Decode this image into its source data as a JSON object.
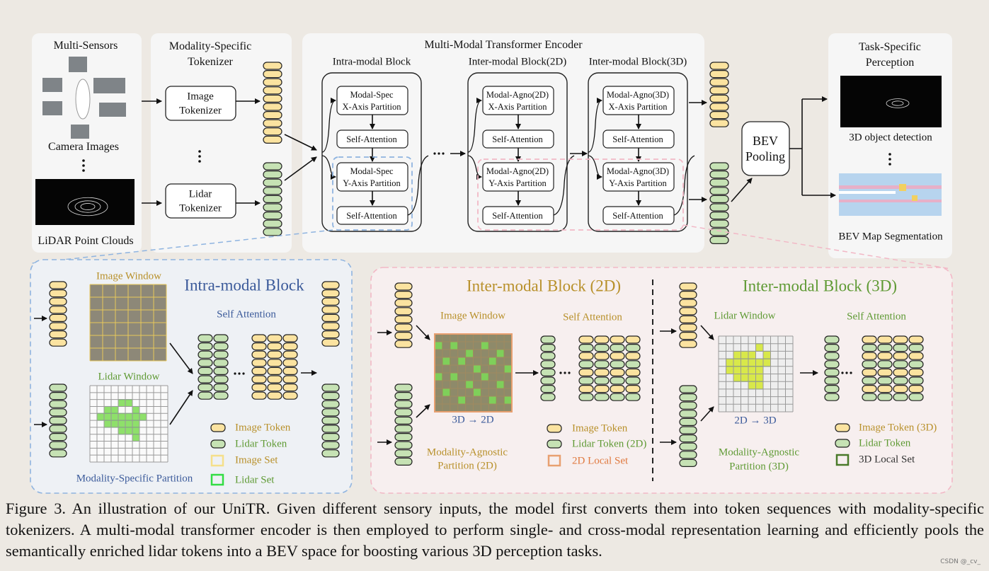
{
  "sensors": {
    "title": "Multi-Sensors",
    "camera": "Camera Images",
    "lidar": "LiDAR Point Clouds"
  },
  "tokenizer": {
    "title": [
      "Modality-Specific",
      "Tokenizer"
    ],
    "image": [
      "Image",
      "Tokenizer"
    ],
    "lidar": [
      "Lidar",
      "Tokenizer"
    ]
  },
  "encoder": {
    "title": "Multi-Modal Transformer Encoder",
    "blocks": [
      {
        "title": "Intra-modal Block",
        "x_partition": [
          "Modal-Spec",
          "X-Axis Partition"
        ],
        "attention_1": "Self-Attention",
        "y_partition": [
          "Modal-Spec",
          "Y-Axis Partition"
        ],
        "attention_2": "Self-Attention"
      },
      {
        "title": "Inter-modal Block(2D)",
        "x_partition": [
          "Modal-Agno(2D)",
          "X-Axis Partition"
        ],
        "attention_1": "Self-Attention",
        "y_partition": [
          "Modal-Agno(2D)",
          "Y-Axis Partition"
        ],
        "attention_2": "Self-Attention"
      },
      {
        "title": "Inter-modal Block(3D)",
        "x_partition": [
          "Modal-Agno(3D)",
          "X-Axis Partition"
        ],
        "attention_1": "Self-Attention",
        "y_partition": [
          "Modal-Agno(3D)",
          "Y-Axis Partition"
        ],
        "attention_2": "Self-Attention"
      }
    ]
  },
  "pooling": [
    "BEV",
    "Pooling"
  ],
  "perception": {
    "title": [
      "Task-Specific",
      "Perception"
    ],
    "detection": "3D object detection",
    "segmentation": "BEV Map Segmentation"
  },
  "intra_detail": {
    "title": "Intra-modal Block",
    "image_window": "Image Window",
    "lidar_window": "Lidar Window",
    "attention": "Self Attention",
    "legend": [
      "Image Token",
      "Lidar Token",
      "Image Set",
      "Lidar Set"
    ],
    "partition": "Modality-Specific Partition"
  },
  "inter2d_detail": {
    "title": "Inter-modal Block (2D)",
    "window": "Image Window",
    "projection": "3D → 2D",
    "attention": "Self Attention",
    "legend": [
      "Image Token",
      "Lidar Token (2D)",
      "2D Local Set"
    ],
    "partition": [
      "Modality-Agnostic",
      "Partition (2D)"
    ]
  },
  "inter3d_detail": {
    "title": "Inter-modal Block (3D)",
    "window": "Lidar Window",
    "projection": "2D → 3D",
    "attention": "Self Attention",
    "legend": [
      "Image Token (3D)",
      "Lidar Token",
      "3D Local Set"
    ],
    "partition": [
      "Modality-Agnostic",
      "Partition (3D)"
    ]
  },
  "caption": "Figure 3. An illustration of our UniTR. Given different sensory inputs, the model first converts them into token sequences with modality-specific tokenizers. A multi-modal transformer encoder is then employed to perform single- and cross-modal representation learning and efficiently pools the semantically enriched lidar tokens into a BEV space for boosting various 3D perception tasks.",
  "watermark": "CSDN @_cv_"
}
